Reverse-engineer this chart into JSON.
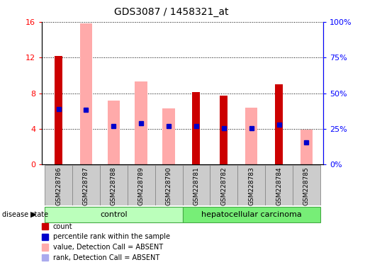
{
  "title": "GDS3087 / 1458321_at",
  "samples": [
    "GSM228786",
    "GSM228787",
    "GSM228788",
    "GSM228789",
    "GSM228790",
    "GSM228781",
    "GSM228782",
    "GSM228783",
    "GSM228784",
    "GSM228785"
  ],
  "red_bar_heights": [
    12.2,
    0,
    0,
    0,
    0,
    8.1,
    7.7,
    0,
    9.0,
    0
  ],
  "pink_bar_heights": [
    0,
    15.8,
    7.2,
    9.3,
    6.3,
    0,
    0,
    6.4,
    0,
    3.9
  ],
  "blue_dot_y": [
    6.2,
    6.1,
    4.3,
    4.6,
    4.3,
    4.3,
    4.1,
    4.1,
    4.5,
    2.5
  ],
  "blue_dot_color": "#0000cc",
  "lightblue_dot_color": "#aaaaee",
  "red_bar_color": "#cc0000",
  "pink_bar_color": "#ffaaaa",
  "ylim_left": [
    0,
    16
  ],
  "ylim_right": [
    0,
    100
  ],
  "yticks_left": [
    0,
    4,
    8,
    12,
    16
  ],
  "yticks_right": [
    0,
    25,
    50,
    75,
    100
  ],
  "ytick_labels_right": [
    "0%",
    "25%",
    "50%",
    "75%",
    "100%"
  ],
  "control_color": "#bbffbb",
  "carcinoma_color": "#77ee77",
  "group_label_control": "control",
  "group_label_carcinoma": "hepatocellular carcinoma",
  "disease_state_label": "disease state",
  "n_control": 5,
  "n_carcinoma": 5,
  "legend_items": [
    {
      "color": "#cc0000",
      "label": "count"
    },
    {
      "color": "#0000cc",
      "label": "percentile rank within the sample"
    },
    {
      "color": "#ffaaaa",
      "label": "value, Detection Call = ABSENT"
    },
    {
      "color": "#aaaaee",
      "label": "rank, Detection Call = ABSENT"
    }
  ]
}
